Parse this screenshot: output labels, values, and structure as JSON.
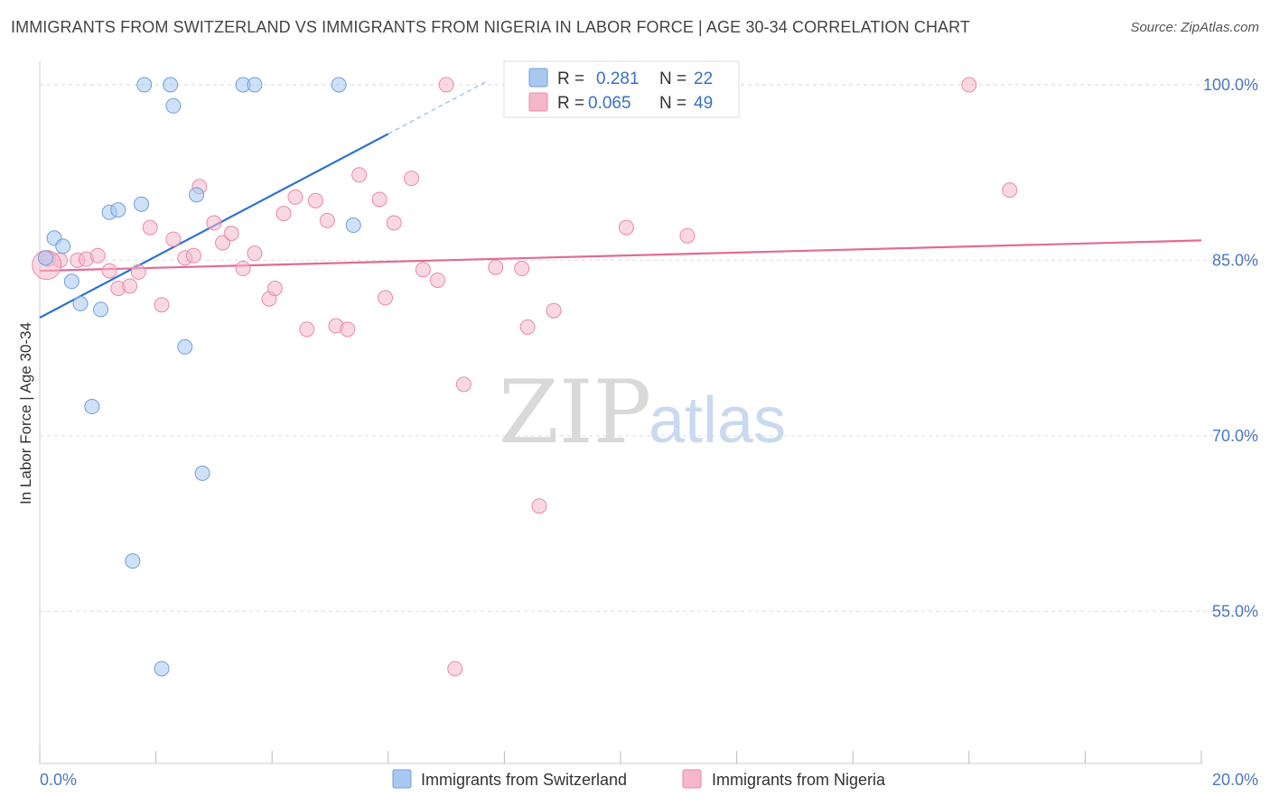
{
  "header": {
    "title": "IMMIGRANTS FROM SWITZERLAND VS IMMIGRANTS FROM NIGERIA IN LABOR FORCE | AGE 30-34 CORRELATION CHART",
    "source": "Source: ZipAtlas.com"
  },
  "watermark": {
    "zip": "ZIP",
    "atlas": "atlas"
  },
  "stats_box": [
    {
      "r_label": "R =",
      "r_value": "0.281",
      "n_label": "N =",
      "n_value": "22",
      "color": "#a8c8f0"
    },
    {
      "r_label": "R =",
      "r_value": "0.065",
      "n_label": "N =",
      "n_value": "49",
      "color": "#f5b8cb"
    }
  ],
  "chart_data": {
    "type": "scatter",
    "title": "IMMIGRANTS FROM SWITZERLAND VS IMMIGRANTS FROM NIGERIA IN LABOR FORCE | AGE 30-34 CORRELATION CHART",
    "xlabel": "",
    "ylabel": "In Labor Force | Age 30-34",
    "xlim": [
      0,
      20
    ],
    "ylim": [
      42,
      102
    ],
    "x_tick_labels": [
      "0.0%",
      "20.0%"
    ],
    "y_ticks": [
      100,
      85,
      70,
      55
    ],
    "y_tick_labels": [
      "100.0%",
      "85.0%",
      "70.0%",
      "55.0%"
    ],
    "grid": true,
    "legend_position": "bottom-center",
    "series": [
      {
        "name": "Immigrants from Switzerland",
        "color": "#a8c8f0",
        "stroke": "#6f9fdc",
        "trend_color": "#2f72d0",
        "trend": {
          "x0": 0,
          "y0": 80.1,
          "x1": 6.0,
          "y1": 95.8,
          "dash_to_x": 7.7,
          "dash_to_y": 100.3
        },
        "points": [
          {
            "x": 0.1,
            "y": 85.2
          },
          {
            "x": 0.25,
            "y": 86.9
          },
          {
            "x": 0.4,
            "y": 86.2
          },
          {
            "x": 0.55,
            "y": 83.2
          },
          {
            "x": 0.7,
            "y": 81.3
          },
          {
            "x": 1.05,
            "y": 80.8
          },
          {
            "x": 1.2,
            "y": 89.1
          },
          {
            "x": 1.35,
            "y": 89.3
          },
          {
            "x": 1.75,
            "y": 89.8
          },
          {
            "x": 1.8,
            "y": 100.0
          },
          {
            "x": 2.25,
            "y": 100.0
          },
          {
            "x": 2.3,
            "y": 98.2
          },
          {
            "x": 2.7,
            "y": 90.6
          },
          {
            "x": 3.5,
            "y": 100.0
          },
          {
            "x": 3.7,
            "y": 100.0
          },
          {
            "x": 5.15,
            "y": 100.0
          },
          {
            "x": 5.4,
            "y": 88.0
          },
          {
            "x": 2.5,
            "y": 77.6
          },
          {
            "x": 0.9,
            "y": 72.5
          },
          {
            "x": 2.8,
            "y": 66.8
          },
          {
            "x": 1.6,
            "y": 59.3
          },
          {
            "x": 2.1,
            "y": 50.1
          }
        ]
      },
      {
        "name": "Immigrants from Nigeria",
        "color": "#f5b8cb",
        "stroke": "#e88aa8",
        "trend_color": "#e36a95",
        "trend": {
          "x0": 0,
          "y0": 84.1,
          "x1": 20,
          "y1": 86.7
        },
        "points": [
          {
            "x": 0.15,
            "y": 85.1
          },
          {
            "x": 0.35,
            "y": 85.0
          },
          {
            "x": 0.65,
            "y": 85.0
          },
          {
            "x": 0.8,
            "y": 85.1
          },
          {
            "x": 1.0,
            "y": 85.4
          },
          {
            "x": 1.2,
            "y": 84.1
          },
          {
            "x": 1.35,
            "y": 82.6
          },
          {
            "x": 1.55,
            "y": 82.8
          },
          {
            "x": 1.7,
            "y": 84.0
          },
          {
            "x": 1.9,
            "y": 87.8
          },
          {
            "x": 2.1,
            "y": 81.2
          },
          {
            "x": 2.3,
            "y": 86.8
          },
          {
            "x": 2.5,
            "y": 85.2
          },
          {
            "x": 2.65,
            "y": 85.4
          },
          {
            "x": 2.75,
            "y": 91.3
          },
          {
            "x": 3.0,
            "y": 88.2
          },
          {
            "x": 3.15,
            "y": 86.5
          },
          {
            "x": 3.3,
            "y": 87.3
          },
          {
            "x": 3.5,
            "y": 84.3
          },
          {
            "x": 3.7,
            "y": 85.6
          },
          {
            "x": 3.95,
            "y": 81.7
          },
          {
            "x": 4.05,
            "y": 82.6
          },
          {
            "x": 4.2,
            "y": 89.0
          },
          {
            "x": 4.4,
            "y": 90.4
          },
          {
            "x": 4.6,
            "y": 79.1
          },
          {
            "x": 4.75,
            "y": 90.1
          },
          {
            "x": 4.95,
            "y": 88.4
          },
          {
            "x": 5.1,
            "y": 79.4
          },
          {
            "x": 5.3,
            "y": 79.1
          },
          {
            "x": 5.5,
            "y": 92.3
          },
          {
            "x": 5.85,
            "y": 90.2
          },
          {
            "x": 5.95,
            "y": 81.8
          },
          {
            "x": 6.1,
            "y": 88.2
          },
          {
            "x": 6.4,
            "y": 92.0
          },
          {
            "x": 6.6,
            "y": 84.2
          },
          {
            "x": 6.85,
            "y": 83.3
          },
          {
            "x": 7.0,
            "y": 100.0
          },
          {
            "x": 7.3,
            "y": 74.4
          },
          {
            "x": 7.85,
            "y": 84.4
          },
          {
            "x": 8.3,
            "y": 84.3
          },
          {
            "x": 8.4,
            "y": 79.3
          },
          {
            "x": 8.6,
            "y": 64.0
          },
          {
            "x": 8.85,
            "y": 80.7
          },
          {
            "x": 10.1,
            "y": 87.8
          },
          {
            "x": 11.15,
            "y": 87.1
          },
          {
            "x": 16.0,
            "y": 100.0
          },
          {
            "x": 16.7,
            "y": 91.0
          },
          {
            "x": 7.15,
            "y": 50.1
          },
          {
            "x": 0.12,
            "y": 84.6
          }
        ]
      }
    ]
  }
}
